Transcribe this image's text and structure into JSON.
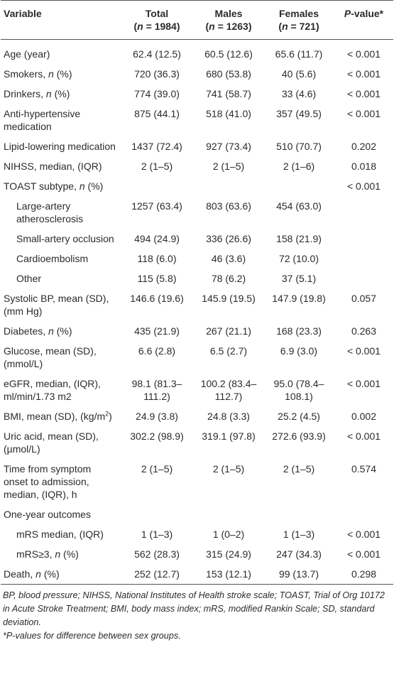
{
  "table": {
    "header": {
      "variable": "Variable",
      "columns": [
        {
          "title": "Total",
          "sub": [
            "(",
            {
              "i": "n"
            },
            " = 1984)"
          ]
        },
        {
          "title": "Males",
          "sub": [
            "(",
            {
              "i": "n"
            },
            " = 1263)"
          ]
        },
        {
          "title": "Females",
          "sub": [
            "(",
            {
              "i": "n"
            },
            " = 721)"
          ]
        },
        {
          "title": [
            {
              "i": "P"
            },
            "-value*"
          ],
          "sub": null
        }
      ]
    },
    "rows": [
      {
        "label": "Age (year)",
        "indent": false,
        "cells": [
          "62.4 (12.5)",
          "60.5 (12.6)",
          "65.6 (11.7)",
          "< 0.001"
        ]
      },
      {
        "label": [
          "Smokers, ",
          {
            "i": "n"
          },
          " (%)"
        ],
        "indent": false,
        "cells": [
          "720 (36.3)",
          "680 (53.8)",
          "40 (5.6)",
          "< 0.001"
        ]
      },
      {
        "label": [
          "Drinkers, ",
          {
            "i": "n"
          },
          " (%)"
        ],
        "indent": false,
        "cells": [
          "774 (39.0)",
          "741 (58.7)",
          "33 (4.6)",
          "< 0.001"
        ]
      },
      {
        "label": "Anti-hypertensive medication",
        "indent": false,
        "cells": [
          "875 (44.1)",
          "518 (41.0)",
          "357 (49.5)",
          "< 0.001"
        ]
      },
      {
        "label": "Lipid-lowering medication",
        "indent": false,
        "cells": [
          "1437 (72.4)",
          "927 (73.4)",
          "510 (70.7)",
          "0.202"
        ]
      },
      {
        "label": "NIHSS, median, (IQR)",
        "indent": false,
        "cells": [
          "2 (1–5)",
          "2 (1–5)",
          "2 (1–6)",
          "0.018"
        ]
      },
      {
        "label": [
          "TOAST subtype, ",
          {
            "i": "n"
          },
          " (%)"
        ],
        "indent": false,
        "cells": [
          null,
          null,
          null,
          "< 0.001"
        ]
      },
      {
        "label": "Large-artery atherosclerosis",
        "indent": true,
        "cells": [
          "1257 (63.4)",
          "803 (63.6)",
          "454 (63.0)",
          null
        ]
      },
      {
        "label": "Small-artery occlusion",
        "indent": true,
        "cells": [
          "494 (24.9)",
          "336 (26.6)",
          "158 (21.9)",
          null
        ]
      },
      {
        "label": "Cardioembolism",
        "indent": true,
        "cells": [
          "118 (6.0)",
          "46 (3.6)",
          "72 (10.0)",
          null
        ]
      },
      {
        "label": "Other",
        "indent": true,
        "cells": [
          "115 (5.8)",
          "78 (6.2)",
          "37 (5.1)",
          null
        ]
      },
      {
        "label": "Systolic BP, mean (SD), (mm Hg)",
        "indent": false,
        "cells": [
          "146.6 (19.6)",
          "145.9 (19.5)",
          "147.9 (19.8)",
          "0.057"
        ]
      },
      {
        "label": [
          "Diabetes, ",
          {
            "i": "n"
          },
          " (%)"
        ],
        "indent": false,
        "cells": [
          "435 (21.9)",
          "267 (21.1)",
          "168 (23.3)",
          "0.263"
        ]
      },
      {
        "label": "Glucose, mean (SD), (mmol/L)",
        "indent": false,
        "cells": [
          "6.6 (2.8)",
          "6.5 (2.7)",
          "6.9 (3.0)",
          "< 0.001"
        ]
      },
      {
        "label": "eGFR, median, (IQR), ml/min/1.73 m2",
        "indent": false,
        "cells": [
          "98.1 (81.3–111.2)",
          "100.2 (83.4–112.7)",
          "95.0 (78.4–108.1)",
          "< 0.001"
        ]
      },
      {
        "label": [
          "BMI, mean (SD), (kg/m",
          {
            "sup": "2"
          },
          ")"
        ],
        "indent": false,
        "cells": [
          "24.9 (3.8)",
          "24.8 (3.3)",
          "25.2 (4.5)",
          "0.002"
        ]
      },
      {
        "label": "Uric acid, mean (SD), (µmol/L)",
        "indent": false,
        "cells": [
          "302.2 (98.9)",
          "319.1 (97.8)",
          "272.6 (93.9)",
          "< 0.001"
        ]
      },
      {
        "label": "Time from symptom onset to admission, median, (IQR), h",
        "indent": false,
        "cells": [
          "2 (1–5)",
          "2 (1–5)",
          "2 (1–5)",
          "0.574"
        ]
      },
      {
        "label": "One-year outcomes",
        "indent": false,
        "cells": [
          null,
          null,
          null,
          null
        ]
      },
      {
        "label": "mRS median, (IQR)",
        "indent": true,
        "cells": [
          "1 (1–3)",
          "1 (0–2)",
          "1 (1–3)",
          "< 0.001"
        ]
      },
      {
        "label": [
          "mRS≥3, ",
          {
            "i": "n"
          },
          " (%)"
        ],
        "indent": true,
        "cells": [
          "562 (28.3)",
          "315 (24.9)",
          "247 (34.3)",
          "< 0.001"
        ]
      },
      {
        "label": [
          "Death, ",
          {
            "i": "n"
          },
          " (%)"
        ],
        "indent": false,
        "cells": [
          "252 (12.7)",
          "153 (12.1)",
          "99 (13.7)",
          "0.298"
        ]
      }
    ],
    "footnotes": [
      "BP, blood pressure; NIHSS, National Institutes of Health stroke scale; TOAST, Trial of Org 10172 in Acute Stroke Treatment; BMI, body mass index; mRS, modified Rankin Scale; SD, standard deviation.",
      "*P-values for difference between sex groups."
    ]
  }
}
